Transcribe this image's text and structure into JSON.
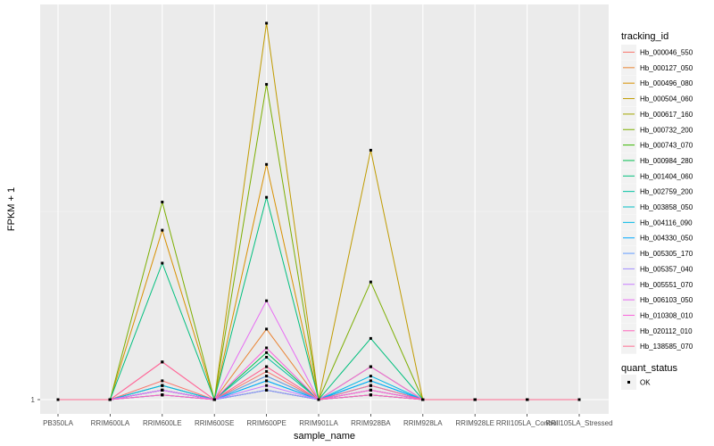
{
  "chart_data": {
    "type": "line",
    "xlabel": "sample_name",
    "ylabel": "FPKM + 1",
    "y_tick_labels": [
      "1"
    ],
    "y_scale": "log",
    "categories": [
      "PB350LA",
      "RRIM600LA",
      "RRIM600LE",
      "RRIM600SE",
      "RRIM600PE",
      "RRIM901LA",
      "RRIM928BA",
      "RRIM928LA",
      "RRIM928LE",
      "RRII105LA_Control",
      "RRII105LA_Stressed"
    ],
    "legend_title": "tracking_id",
    "legend_position": "right",
    "shape_legend_title": "quant_status",
    "shape_legend_items": [
      "OK"
    ],
    "grid": true,
    "series": [
      {
        "name": "Hb_000046_550",
        "color": "#F8766D",
        "values": [
          0,
          0,
          0.04,
          0,
          0.06,
          0,
          0.02,
          0,
          0,
          0,
          0
        ]
      },
      {
        "name": "Hb_000127_050",
        "color": "#EA8331",
        "values": [
          0,
          0,
          0.03,
          0,
          0.15,
          0,
          0.07,
          0,
          0,
          0,
          0
        ]
      },
      {
        "name": "Hb_000496_080",
        "color": "#D89000",
        "values": [
          0,
          0,
          0.36,
          0,
          0.5,
          0,
          0.07,
          0,
          0,
          0,
          0
        ]
      },
      {
        "name": "Hb_000504_060",
        "color": "#C09B00",
        "values": [
          0,
          0,
          0.02,
          0,
          0.8,
          0,
          0.53,
          0,
          0,
          0,
          0
        ]
      },
      {
        "name": "Hb_000617_160",
        "color": "#A3A500",
        "values": [
          0,
          0,
          0.02,
          0,
          0.05,
          0,
          0.02,
          0,
          0,
          0,
          0
        ]
      },
      {
        "name": "Hb_000732_200",
        "color": "#7CAE00",
        "values": [
          0,
          0,
          0.42,
          0,
          0.67,
          0,
          0.25,
          0,
          0,
          0,
          0
        ]
      },
      {
        "name": "Hb_000743_070",
        "color": "#39B600",
        "values": [
          0,
          0,
          0.01,
          0,
          0.02,
          0,
          0.01,
          0,
          0,
          0,
          0
        ]
      },
      {
        "name": "Hb_000984_280",
        "color": "#00BB4E",
        "values": [
          0,
          0,
          0.02,
          0,
          0.1,
          0,
          0.01,
          0,
          0,
          0,
          0
        ]
      },
      {
        "name": "Hb_001404_060",
        "color": "#00BF7D",
        "values": [
          0,
          0,
          0.29,
          0,
          0.43,
          0,
          0.13,
          0,
          0,
          0,
          0
        ]
      },
      {
        "name": "Hb_002759_200",
        "color": "#00C1A3",
        "values": [
          0,
          0,
          0.03,
          0,
          0.09,
          0,
          0.04,
          0,
          0,
          0,
          0
        ]
      },
      {
        "name": "Hb_003858_050",
        "color": "#00BFC4",
        "values": [
          0,
          0,
          0.02,
          0,
          0.04,
          0,
          0.03,
          0,
          0,
          0,
          0
        ]
      },
      {
        "name": "Hb_004116_090",
        "color": "#00B8E7",
        "values": [
          0,
          0,
          0.03,
          0,
          0.02,
          0,
          0.05,
          0,
          0,
          0,
          0
        ]
      },
      {
        "name": "Hb_004330_050",
        "color": "#00A9FF",
        "values": [
          0,
          0,
          0.02,
          0,
          0.04,
          0,
          0.04,
          0,
          0,
          0,
          0
        ]
      },
      {
        "name": "Hb_005305_170",
        "color": "#619CFF",
        "values": [
          0,
          0,
          0.01,
          0,
          0.05,
          0,
          0.03,
          0,
          0,
          0,
          0
        ]
      },
      {
        "name": "Hb_005357_040",
        "color": "#9F8CFF",
        "values": [
          0,
          0,
          0.01,
          0,
          0.02,
          0,
          0.02,
          0,
          0,
          0,
          0
        ]
      },
      {
        "name": "Hb_005551_070",
        "color": "#C77CFF",
        "values": [
          0,
          0,
          0.02,
          0,
          0.03,
          0,
          0.01,
          0,
          0,
          0,
          0
        ]
      },
      {
        "name": "Hb_006103_050",
        "color": "#E76BF3",
        "values": [
          0,
          0,
          0.02,
          0,
          0.21,
          0,
          0.07,
          0,
          0,
          0,
          0
        ]
      },
      {
        "name": "Hb_010308_010",
        "color": "#FA62DB",
        "values": [
          0,
          0,
          0.08,
          0,
          0.11,
          0,
          0.02,
          0,
          0,
          0,
          0
        ]
      },
      {
        "name": "Hb_020112_010",
        "color": "#FF62BC",
        "values": [
          0,
          0,
          0.01,
          0,
          0.07,
          0,
          0.01,
          0,
          0,
          0,
          0
        ]
      },
      {
        "name": "Hb_138585_070",
        "color": "#FF6C91",
        "values": [
          0,
          0,
          0.08,
          0,
          0.07,
          0,
          0.03,
          0,
          0,
          0,
          0
        ]
      }
    ]
  }
}
